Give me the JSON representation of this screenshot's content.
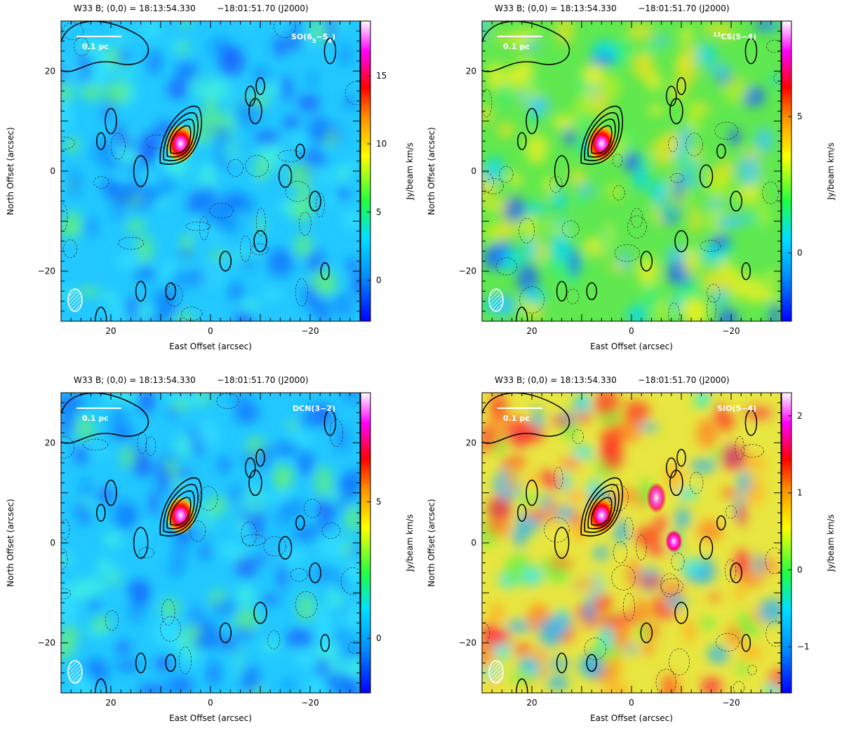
{
  "panels": [
    {
      "header": "W33 B; (0,0) = 18:13:54.330        −18:01:51.70 (J2000)",
      "line_label": "SO(6",
      "line_label_sub1": "5",
      "line_label_mid": "−5",
      "line_label_sub2": "4",
      "line_label_end": ")",
      "scale_bar": "0.1 pc",
      "xlabel": "East Offset (arcsec)",
      "ylabel": "North Offset (arcsec)",
      "cbar_label": "Jy/beam km/s",
      "cbar_ticks": [
        "15",
        "10",
        "5",
        "0"
      ],
      "cbar_range": [
        -3,
        19
      ],
      "cbar_tick_values": [
        15,
        10,
        5,
        0
      ],
      "colormap": "blue",
      "x_ticks": [
        "20",
        "0",
        "−20"
      ],
      "y_ticks": [
        "20",
        "0",
        "−20"
      ]
    },
    {
      "header": "W33 B; (0,0) = 18:13:54.330        −18:01:51.70 (J2000)",
      "line_label": "",
      "line_label_sup": "13",
      "line_label_main": "CS(5−4)",
      "scale_bar": "0.1 pc",
      "xlabel": "East Offset (arcsec)",
      "ylabel": "North Offset (arcsec)",
      "cbar_label": "Jy/beam km/s",
      "cbar_ticks": [
        "5",
        "0"
      ],
      "cbar_range": [
        -2.5,
        8.5
      ],
      "cbar_tick_values": [
        5,
        0
      ],
      "colormap": "green",
      "x_ticks": [
        "20",
        "0",
        "−20"
      ],
      "y_ticks": [
        "20",
        "0",
        "−20"
      ]
    },
    {
      "header": "W33 B; (0,0) = 18:13:54.330        −18:01:51.70 (J2000)",
      "line_label_main": "DCN(3−2)",
      "scale_bar": "0.1 pc",
      "xlabel": "East Offset (arcsec)",
      "ylabel": "North Offset (arcsec)",
      "cbar_label": "Jy/beam km/s",
      "cbar_ticks": [
        "5",
        "0"
      ],
      "cbar_range": [
        -2,
        9
      ],
      "cbar_tick_values": [
        5,
        0
      ],
      "colormap": "blue",
      "x_ticks": [
        "20",
        "0",
        "−20"
      ],
      "y_ticks": [
        "20",
        "0",
        "−20"
      ]
    },
    {
      "header": "W33 B; (0,0) = 18:13:54.330        −18:01:51.70 (J2000)",
      "line_label_main": "SiO(5−4)",
      "scale_bar": "0.1 pc",
      "xlabel": "East Offset (arcsec)",
      "ylabel": "North Offset (arcsec)",
      "cbar_label": "Jy/beam km/s",
      "cbar_ticks": [
        "2",
        "1",
        "0",
        "−1"
      ],
      "cbar_range": [
        -1.6,
        2.3
      ],
      "cbar_tick_values": [
        2,
        1,
        0,
        -1
      ],
      "colormap": "warm",
      "x_ticks": [
        "20",
        "0",
        "−20"
      ],
      "y_ticks": [
        "20",
        "0",
        "−20"
      ]
    }
  ],
  "colors": {
    "blue_bg": "#2ad0ff",
    "green_bg": "#6cef3a",
    "warm_bg": "#f4e23a",
    "contour": "#000000",
    "peak": "#ff33cc"
  },
  "axis_range": {
    "x": [
      30,
      -30
    ],
    "y": [
      -30,
      30
    ]
  }
}
